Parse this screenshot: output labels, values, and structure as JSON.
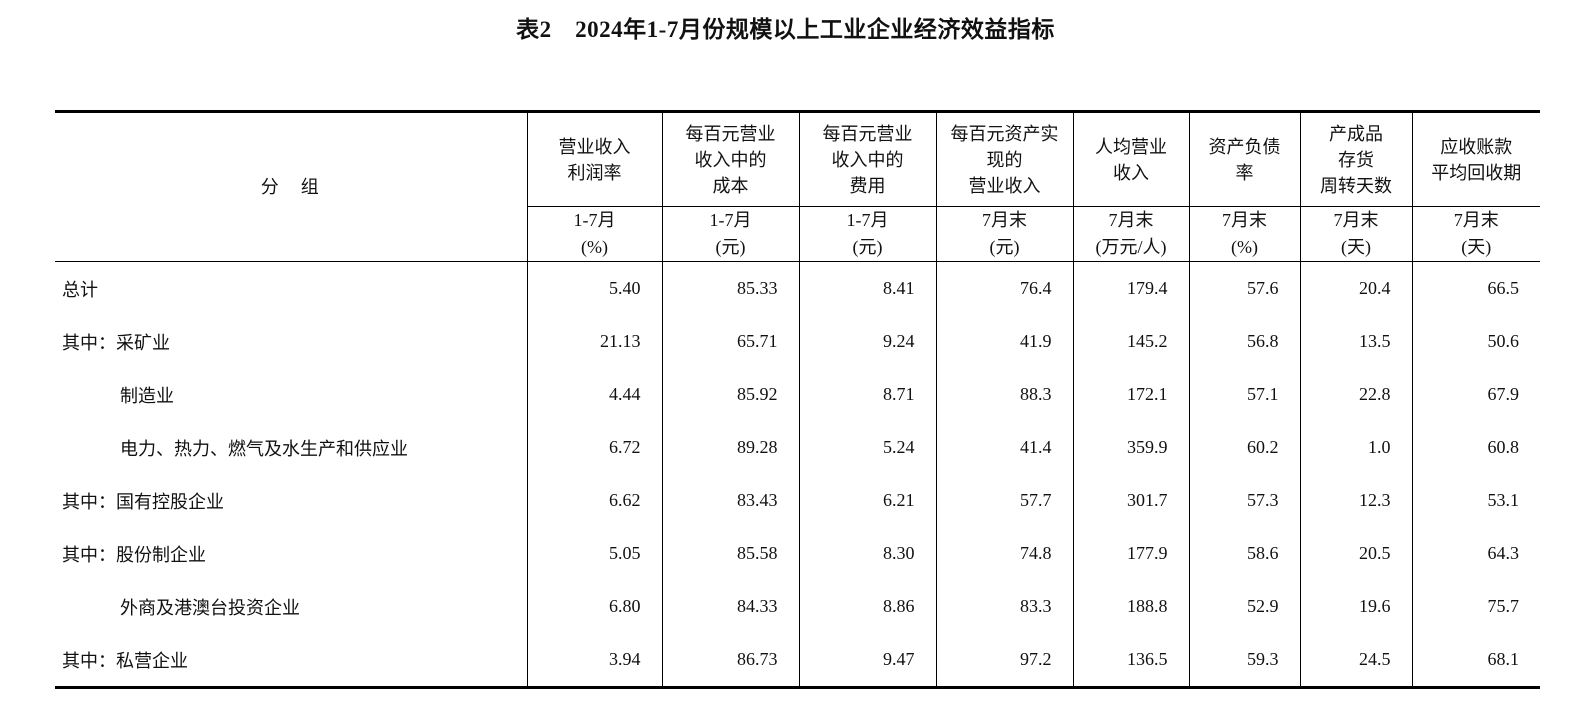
{
  "title": "表2　2024年1-7月份规模以上工业企业经济效益指标",
  "table": {
    "group_header": "分　组",
    "columns": [
      {
        "lines": [
          "营业收入",
          "利润率"
        ],
        "period": "1-7月",
        "unit": "(%)"
      },
      {
        "lines": [
          "每百元营业",
          "收入中的",
          "成本"
        ],
        "period": "1-7月",
        "unit": "(元)"
      },
      {
        "lines": [
          "每百元营业",
          "收入中的",
          "费用"
        ],
        "period": "1-7月",
        "unit": "(元)"
      },
      {
        "lines": [
          "每百元资产实",
          "现的",
          "营业收入"
        ],
        "period": "7月末",
        "unit": "(元)"
      },
      {
        "lines": [
          "人均营业",
          "收入"
        ],
        "period": "7月末",
        "unit": "(万元/人)"
      },
      {
        "lines": [
          "资产负债",
          "率"
        ],
        "period": "7月末",
        "unit": "(%)"
      },
      {
        "lines": [
          "产成品",
          "存货",
          "周转天数"
        ],
        "period": "7月末",
        "unit": "(天)"
      },
      {
        "lines": [
          "应收账款",
          "平均回收期"
        ],
        "period": "7月末",
        "unit": "(天)"
      }
    ],
    "rows": [
      {
        "label": "总计",
        "values": [
          "5.40",
          "85.33",
          "8.41",
          "76.4",
          "179.4",
          "57.6",
          "20.4",
          "66.5"
        ]
      },
      {
        "label": "其中：采矿业",
        "values": [
          "21.13",
          "65.71",
          "9.24",
          "41.9",
          "145.2",
          "56.8",
          "13.5",
          "50.6"
        ]
      },
      {
        "label": "制造业",
        "values": [
          "4.44",
          "85.92",
          "8.71",
          "88.3",
          "172.1",
          "57.1",
          "22.8",
          "67.9"
        ]
      },
      {
        "label": "电力、热力、燃气及水生产和供应业",
        "values": [
          "6.72",
          "89.28",
          "5.24",
          "41.4",
          "359.9",
          "60.2",
          "1.0",
          "60.8"
        ]
      },
      {
        "label": "其中：国有控股企业",
        "values": [
          "6.62",
          "83.43",
          "6.21",
          "57.7",
          "301.7",
          "57.3",
          "12.3",
          "53.1"
        ]
      },
      {
        "label": "其中：股份制企业",
        "values": [
          "5.05",
          "85.58",
          "8.30",
          "74.8",
          "177.9",
          "58.6",
          "20.5",
          "64.3"
        ]
      },
      {
        "label": "外商及港澳台投资企业",
        "values": [
          "6.80",
          "84.33",
          "8.86",
          "83.3",
          "188.8",
          "52.9",
          "19.6",
          "75.7"
        ]
      },
      {
        "label": "其中：私营企业",
        "values": [
          "3.94",
          "86.73",
          "9.47",
          "97.2",
          "136.5",
          "59.3",
          "24.5",
          "68.1"
        ]
      }
    ]
  }
}
